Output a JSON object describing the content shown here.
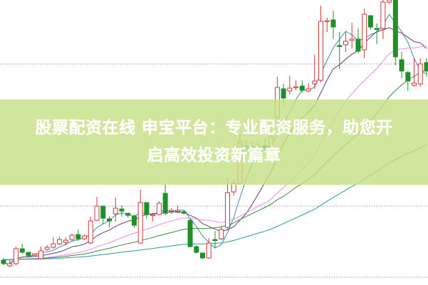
{
  "banner": {
    "line1": "股票配资在线 申宝平台：专业配资服务，助您开",
    "line2": "启高效投资新篇章"
  },
  "chart_data": {
    "type": "candlestick",
    "title": "",
    "xlabel": "",
    "ylabel": "",
    "ylim": [
      0,
      40
    ],
    "grid": {
      "horizontal": true,
      "style": "dotted",
      "levels": [
        31,
        11,
        1
      ]
    },
    "colors": {
      "up": "#d0383a",
      "down": "#1e8f2a",
      "ma": [
        "#3a8fa8",
        "#6a3a6a",
        "#e890e8",
        "#3c8a3c",
        "#2a9a9a"
      ],
      "banner": "#c4e086"
    },
    "ohlc": [
      [
        3.4,
        3.7,
        2.7,
        2.9
      ],
      [
        2.6,
        3.4,
        2.4,
        2.9
      ],
      [
        2.9,
        5.3,
        2.7,
        5.0
      ],
      [
        5.0,
        5.7,
        4.3,
        4.5
      ],
      [
        4.5,
        4.5,
        4.0,
        4.0
      ],
      [
        4.1,
        4.3,
        4.0,
        4.3
      ],
      [
        3.6,
        5.3,
        3.5,
        4.7
      ],
      [
        4.9,
        5.5,
        4.7,
        5.2
      ],
      [
        5.2,
        6.6,
        5.0,
        5.7
      ],
      [
        5.7,
        6.7,
        5.5,
        6.3
      ],
      [
        5.9,
        6.6,
        5.5,
        6.2
      ],
      [
        6.3,
        7.1,
        6.1,
        6.9
      ],
      [
        7.0,
        7.7,
        6.1,
        6.4
      ],
      [
        6.4,
        7.0,
        6.2,
        6.8
      ],
      [
        5.8,
        9.5,
        5.7,
        8.9
      ],
      [
        9.0,
        12.3,
        8.9,
        11.0
      ],
      [
        11.0,
        11.0,
        8.5,
        9.3
      ],
      [
        9.2,
        9.5,
        8.0,
        8.9
      ],
      [
        9.9,
        12.2,
        8.8,
        10.7
      ],
      [
        10.6,
        11.1,
        9.5,
        10.3
      ],
      [
        10.0,
        10.0,
        9.4,
        9.7
      ],
      [
        9.6,
        9.8,
        8.0,
        8.3
      ],
      [
        5.8,
        13.3,
        5.7,
        11.5
      ],
      [
        11.5,
        11.5,
        9.2,
        9.8
      ],
      [
        9.8,
        10.0,
        8.8,
        9.8
      ],
      [
        9.8,
        11.7,
        9.7,
        11.4
      ],
      [
        12.8,
        14.1,
        9.7,
        10.0
      ],
      [
        10.3,
        10.7,
        9.9,
        10.4
      ],
      [
        10.3,
        11.1,
        10.0,
        10.4
      ],
      [
        10.2,
        10.4,
        9.8,
        10.0
      ],
      [
        9.0,
        9.3,
        5.2,
        5.3
      ],
      [
        5.3,
        5.5,
        4.3,
        4.5
      ],
      [
        4.4,
        4.4,
        3.6,
        3.7
      ],
      [
        3.7,
        6.5,
        3.6,
        5.8
      ],
      [
        6.3,
        7.5,
        5.1,
        6.2
      ],
      [
        6.4,
        8.2,
        6.2,
        7.7
      ],
      [
        8.0,
        15.0,
        7.8,
        12.9
      ],
      [
        13.0,
        14.8,
        12.5,
        14.2
      ],
      [
        14.2,
        21.0,
        14.0,
        20.0
      ],
      [
        19.4,
        20.2,
        18.8,
        19.1
      ],
      [
        19.3,
        20.0,
        18.8,
        19.1
      ],
      [
        19.3,
        20.0,
        18.8,
        19.1
      ],
      [
        19.5,
        20.5,
        18.8,
        19.1
      ],
      [
        19.3,
        21.2,
        18.5,
        20.7
      ],
      [
        23.5,
        29.2,
        23.0,
        27.7
      ],
      [
        27.5,
        28.2,
        25.0,
        26.2
      ],
      [
        27.2,
        29.3,
        26.7,
        27.6
      ],
      [
        27.7,
        28.7,
        27.3,
        27.8
      ],
      [
        27.9,
        28.7,
        27.0,
        27.3
      ],
      [
        27.2,
        28.3,
        27.0,
        27.5
      ],
      [
        28.2,
        32.3,
        27.5,
        28.6
      ],
      [
        28.7,
        39.2,
        28.4,
        37.0
      ],
      [
        37.0,
        37.5,
        35.5,
        37.1
      ],
      [
        37.2,
        38.5,
        34.5,
        36.2
      ],
      [
        33.6,
        35.5,
        30.3,
        33.5
      ],
      [
        33.7,
        35.5,
        32.7,
        34.2
      ],
      [
        34.3,
        36.8,
        33.2,
        34.5
      ],
      [
        34.5,
        36.0,
        32.5,
        32.8
      ],
      [
        33.0,
        38.8,
        31.8,
        38.0
      ],
      [
        37.8,
        37.8,
        35.8,
        36.2
      ],
      [
        36.0,
        36.7,
        33.8,
        35.9
      ],
      [
        36.0,
        40.0,
        34.5,
        39.7
      ],
      [
        39.7,
        40.0,
        39.5,
        40.0
      ],
      [
        40.0,
        40.0,
        30.8,
        32.0
      ],
      [
        31.6,
        32.7,
        29.0,
        30.0
      ],
      [
        29.8,
        30.0,
        27.2,
        28.6
      ],
      [
        28.0,
        31.8,
        27.8,
        28.3
      ],
      [
        28.2,
        31.8,
        27.8,
        31.0
      ],
      [
        31.2,
        31.8,
        29.2,
        30.0
      ]
    ]
  }
}
